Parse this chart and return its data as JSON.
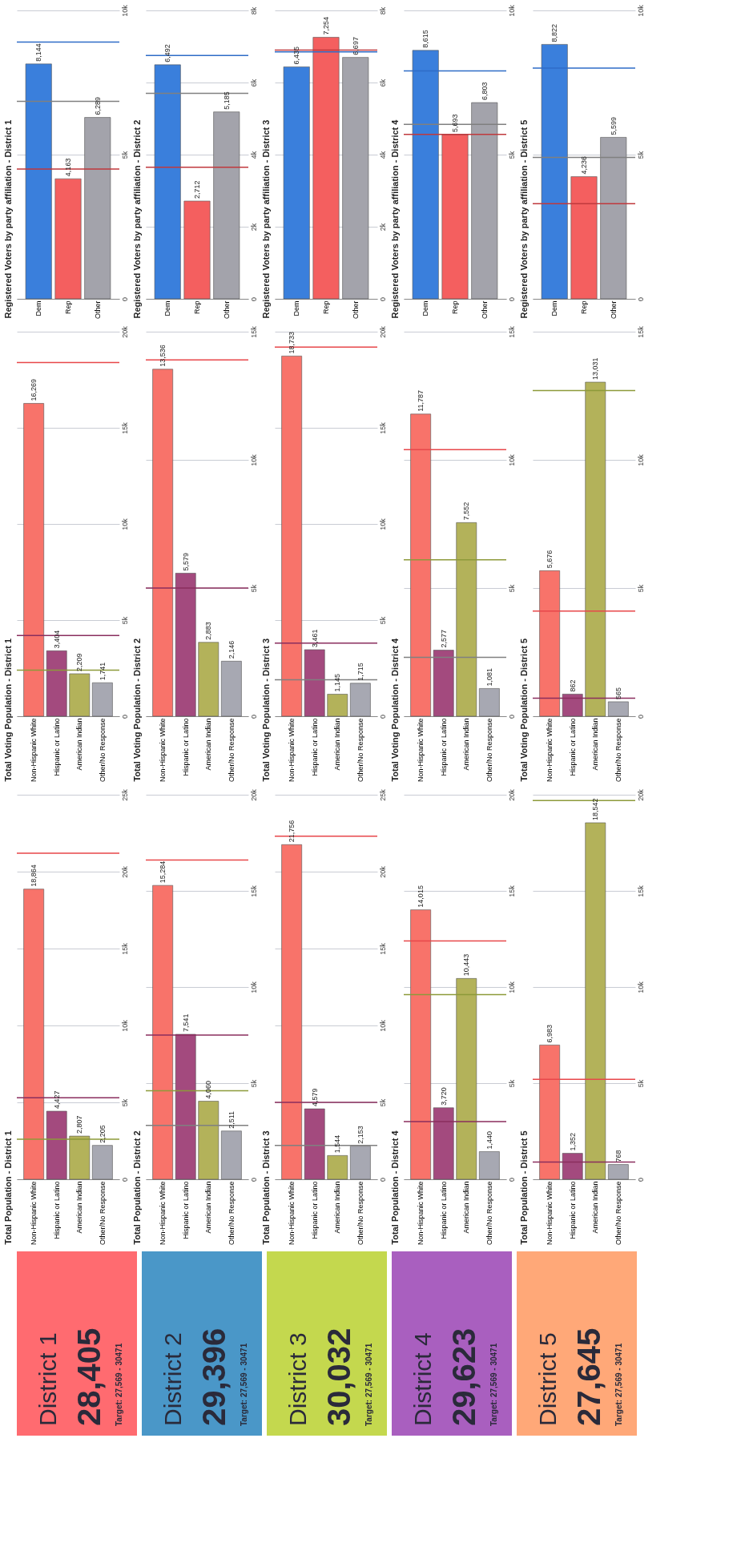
{
  "chart_data": [
    {
      "type": "bar",
      "title": "Registered Voters by party affiliation - District 1",
      "categories": [
        "Dem",
        "Rep",
        "Other"
      ],
      "values": [
        8144,
        4163,
        6289
      ],
      "value_labels": [
        "8,144",
        "4,163",
        "6,289"
      ],
      "colors": [
        "#3a7fdc",
        "#f45f5f",
        "#a3a3ab"
      ],
      "ylim": [
        0,
        10000
      ],
      "yticks": [
        0,
        {
          "value": 5000,
          "label": "5k"
        },
        {
          "value": 10000,
          "label": "10k"
        }
      ],
      "grid": "y",
      "ref_lines": [
        {
          "axis": "y",
          "value": 8900,
          "color": "#2f6cc7"
        },
        {
          "axis": "y",
          "value": 4500,
          "color": "#c0393d"
        },
        {
          "axis": "y",
          "value": 6850,
          "color": "#808080"
        }
      ]
    },
    {
      "type": "bar",
      "title": "Registered Voters by party affiliation - District 2",
      "categories": [
        "Dem",
        "Rep",
        "Other"
      ],
      "values": [
        6492,
        2712,
        5185
      ],
      "value_labels": [
        "6,492",
        "2,712",
        "5,185"
      ],
      "colors": [
        "#3a7fdc",
        "#f45f5f",
        "#a3a3ab"
      ],
      "ylim": [
        0,
        8000
      ],
      "yticks": [
        0,
        {
          "value": 2000,
          "label": "2k"
        },
        {
          "value": 4000,
          "label": "4k"
        },
        {
          "value": 6000,
          "label": "6k"
        },
        {
          "value": 8000,
          "label": "8k"
        }
      ],
      "grid": "y",
      "ref_lines": [
        {
          "axis": "y",
          "value": 6750,
          "color": "#2f6cc7"
        },
        {
          "axis": "y",
          "value": 3650,
          "color": "#c0393d"
        },
        {
          "axis": "y",
          "value": 5700,
          "color": "#808080"
        }
      ]
    },
    {
      "type": "bar",
      "title": "Registered Voters by party affiliation - District 3",
      "categories": [
        "Dem",
        "Rep",
        "Other"
      ],
      "values": [
        6435,
        7254,
        6697
      ],
      "value_labels": [
        "6,435",
        "7,254",
        "6,697"
      ],
      "colors": [
        "#3a7fdc",
        "#f45f5f",
        "#a3a3ab"
      ],
      "ylim": [
        0,
        8000
      ],
      "yticks": [
        0,
        {
          "value": 2000,
          "label": "2k"
        },
        {
          "value": 4000,
          "label": "4k"
        },
        {
          "value": 6000,
          "label": "6k"
        },
        {
          "value": 8000,
          "label": "8k"
        }
      ],
      "grid": "y",
      "ref_lines": [
        {
          "axis": "y",
          "value": 6850,
          "color": "#2f6cc7"
        },
        {
          "axis": "y",
          "value": 6900,
          "color": "#c0393d"
        }
      ]
    },
    {
      "type": "bar",
      "title": "Registered Voters by party affiliation - District 4",
      "categories": [
        "Dem",
        "Rep",
        "Other"
      ],
      "values": [
        8615,
        5693,
        6803
      ],
      "value_labels": [
        "8,615",
        "5,693",
        "6,803"
      ],
      "colors": [
        "#3a7fdc",
        "#f45f5f",
        "#a3a3ab"
      ],
      "ylim": [
        0,
        10000
      ],
      "yticks": [
        0,
        {
          "value": 5000,
          "label": "5k"
        },
        {
          "value": 10000,
          "label": "10k"
        }
      ],
      "grid": "y",
      "ref_lines": [
        {
          "axis": "y",
          "value": 7900,
          "color": "#2f6cc7"
        },
        {
          "axis": "y",
          "value": 5700,
          "color": "#c0393d"
        },
        {
          "axis": "y",
          "value": 6050,
          "color": "#808080"
        }
      ]
    },
    {
      "type": "bar",
      "title": "Registered Voters by party affiliation - District 5",
      "categories": [
        "Dem",
        "Rep",
        "Other"
      ],
      "values": [
        8822,
        4236,
        5599
      ],
      "value_labels": [
        "8,822",
        "4,236",
        "5,599"
      ],
      "colors": [
        "#3a7fdc",
        "#f45f5f",
        "#a3a3ab"
      ],
      "ylim": [
        0,
        10000
      ],
      "yticks": [
        0,
        {
          "value": 5000,
          "label": "5k"
        },
        {
          "value": 10000,
          "label": "10k"
        }
      ],
      "grid": "y",
      "ref_lines": [
        {
          "axis": "y",
          "value": 8000,
          "color": "#2f6cc7"
        },
        {
          "axis": "y",
          "value": 3300,
          "color": "#c0393d"
        },
        {
          "axis": "y",
          "value": 4900,
          "color": "#808080"
        }
      ]
    },
    {
      "type": "bar",
      "title": "Total Voting Population - District 1",
      "categories": [
        "Non-Hispanic White",
        "Hispanic or Latino",
        "American Indian",
        "Other/No Response"
      ],
      "values": [
        16269,
        3404,
        2209,
        1741
      ],
      "value_labels": [
        "16,269",
        "3,404",
        "2,209",
        "1,741"
      ],
      "colors": [
        "#f8736a",
        "#a34a7e",
        "#b3b25a",
        "#a7a8b2"
      ],
      "ylim": [
        0,
        20000
      ],
      "yticks": [
        0,
        {
          "value": 5000,
          "label": "5k"
        },
        {
          "value": 10000,
          "label": "10k"
        },
        {
          "value": 15000,
          "label": "15k"
        },
        {
          "value": 20000,
          "label": "20k"
        }
      ],
      "grid": "y",
      "ref_lines": [
        {
          "axis": "y",
          "value": 18400,
          "color": "#e8474a"
        },
        {
          "axis": "y",
          "value": 4200,
          "color": "#8a2e5e"
        },
        {
          "axis": "y",
          "value": 2400,
          "color": "#8d9a3a"
        }
      ]
    },
    {
      "type": "bar",
      "title": "Total Voting Population - District 2",
      "categories": [
        "Non-Hispanic White",
        "Hispanic or Latino",
        "American Indian",
        "Other/No Response"
      ],
      "values": [
        13536,
        5579,
        2883,
        2146
      ],
      "value_labels": [
        "13,536",
        "5,579",
        "2,883",
        "2,146"
      ],
      "colors": [
        "#f8736a",
        "#a34a7e",
        "#b3b25a",
        "#a7a8b2"
      ],
      "ylim": [
        0,
        15000
      ],
      "yticks": [
        0,
        {
          "value": 5000,
          "label": "5k"
        },
        {
          "value": 10000,
          "label": "10k"
        },
        {
          "value": 15000,
          "label": "15k"
        }
      ],
      "grid": "y",
      "ref_lines": [
        {
          "axis": "y",
          "value": 13900,
          "color": "#e8474a"
        },
        {
          "axis": "y",
          "value": 5000,
          "color": "#8a2e5e"
        }
      ]
    },
    {
      "type": "bar",
      "title": "Total Voting Population - District 3",
      "categories": [
        "Non-Hispanic White",
        "Hispanic or Latino",
        "American Indian",
        "Other/No Response"
      ],
      "values": [
        18733,
        3461,
        1145,
        1715
      ],
      "value_labels": [
        "18,733",
        "3,461",
        "1,145",
        "1,715"
      ],
      "colors": [
        "#f8736a",
        "#a34a7e",
        "#b3b25a",
        "#a7a8b2"
      ],
      "ylim": [
        0,
        20000
      ],
      "yticks": [
        0,
        {
          "value": 5000,
          "label": "5k"
        },
        {
          "value": 10000,
          "label": "10k"
        },
        {
          "value": 15000,
          "label": "15k"
        },
        {
          "value": 20000,
          "label": "20k"
        }
      ],
      "grid": "y",
      "ref_lines": [
        {
          "axis": "y",
          "value": 19200,
          "color": "#e8474a"
        },
        {
          "axis": "y",
          "value": 3800,
          "color": "#8a2e5e"
        },
        {
          "axis": "y",
          "value": 1900,
          "color": "#808080"
        }
      ]
    },
    {
      "type": "bar",
      "title": "Total Voting Population - District 4",
      "categories": [
        "Non-Hispanic White",
        "Hispanic or Latino",
        "American Indian",
        "Other/No Response"
      ],
      "values": [
        11787,
        2577,
        7552,
        1081
      ],
      "value_labels": [
        "11,787",
        "2,577",
        "7,552",
        "1,081"
      ],
      "colors": [
        "#f8736a",
        "#a34a7e",
        "#b3b25a",
        "#a7a8b2"
      ],
      "ylim": [
        0,
        15000
      ],
      "yticks": [
        0,
        {
          "value": 5000,
          "label": "5k"
        },
        {
          "value": 10000,
          "label": "10k"
        },
        {
          "value": 15000,
          "label": "15k"
        }
      ],
      "grid": "y",
      "ref_lines": [
        {
          "axis": "y",
          "value": 10400,
          "color": "#e8474a"
        },
        {
          "axis": "y",
          "value": 6100,
          "color": "#8d9a3a"
        },
        {
          "axis": "y",
          "value": 2300,
          "color": "#808080"
        }
      ]
    },
    {
      "type": "bar",
      "title": "Total Voting Population - District 5",
      "categories": [
        "Non-Hispanic White",
        "Hispanic or Latino",
        "American Indian",
        "Other/No Response"
      ],
      "values": [
        5676,
        862,
        13031,
        565
      ],
      "value_labels": [
        "5,676",
        "862",
        "13,031",
        "565"
      ],
      "colors": [
        "#f8736a",
        "#a34a7e",
        "#b3b25a",
        "#a7a8b2"
      ],
      "ylim": [
        0,
        15000
      ],
      "yticks": [
        0,
        {
          "value": 5000,
          "label": "5k"
        },
        {
          "value": 10000,
          "label": "10k"
        },
        {
          "value": 15000,
          "label": "15k"
        }
      ],
      "grid": "y",
      "ref_lines": [
        {
          "axis": "y",
          "value": 4100,
          "color": "#e8474a"
        },
        {
          "axis": "y",
          "value": 12700,
          "color": "#8d9a3a"
        },
        {
          "axis": "y",
          "value": 700,
          "color": "#8a2e5e"
        }
      ]
    },
    {
      "type": "bar",
      "title": "Total Population - District 1",
      "categories": [
        "Non-Hispanic White",
        "Hispanic or Latino",
        "American Indian",
        "Other/No Response"
      ],
      "values": [
        18864,
        4427,
        2807,
        2205
      ],
      "value_labels": [
        "18,864",
        "4,427",
        "2,807",
        "2,205"
      ],
      "colors": [
        "#f8736a",
        "#a34a7e",
        "#b3b25a",
        "#a7a8b2"
      ],
      "ylim": [
        0,
        25000
      ],
      "yticks": [
        0,
        {
          "value": 5000,
          "label": "5k"
        },
        {
          "value": 10000,
          "label": "10k"
        },
        {
          "value": 15000,
          "label": "15k"
        },
        {
          "value": 20000,
          "label": "20k"
        },
        {
          "value": 25000,
          "label": "25k"
        }
      ],
      "grid": "y",
      "ref_lines": [
        {
          "axis": "y",
          "value": 21200,
          "color": "#e8474a"
        },
        {
          "axis": "y",
          "value": 5300,
          "color": "#8a2e5e"
        },
        {
          "axis": "y",
          "value": 2600,
          "color": "#8d9a3a"
        }
      ]
    },
    {
      "type": "bar",
      "title": "Total Population - District 2",
      "categories": [
        "Non-Hispanic White",
        "Hispanic or Latino",
        "American Indian",
        "Other/No Response"
      ],
      "values": [
        15284,
        7541,
        4060,
        2511
      ],
      "value_labels": [
        "15,284",
        "7,541",
        "4,060",
        "2,511"
      ],
      "colors": [
        "#f8736a",
        "#a34a7e",
        "#b3b25a",
        "#a7a8b2"
      ],
      "ylim": [
        0,
        20000
      ],
      "yticks": [
        0,
        {
          "value": 5000,
          "label": "5k"
        },
        {
          "value": 10000,
          "label": "10k"
        },
        {
          "value": 15000,
          "label": "15k"
        },
        {
          "value": 20000,
          "label": "20k"
        }
      ],
      "grid": "y",
      "ref_lines": [
        {
          "axis": "y",
          "value": 16600,
          "color": "#e8474a"
        },
        {
          "axis": "y",
          "value": 7500,
          "color": "#8a2e5e"
        },
        {
          "axis": "y",
          "value": 4600,
          "color": "#8d9a3a"
        },
        {
          "axis": "y",
          "value": 2800,
          "color": "#808080"
        }
      ]
    },
    {
      "type": "bar",
      "title": "Total Population - District 3",
      "categories": [
        "Non-Hispanic White",
        "Hispanic or Latino",
        "American Indian",
        "Other/No Response"
      ],
      "values": [
        21756,
        4579,
        1544,
        2153
      ],
      "value_labels": [
        "21,756",
        "4,579",
        "1,544",
        "2,153"
      ],
      "colors": [
        "#f8736a",
        "#a34a7e",
        "#b3b25a",
        "#a7a8b2"
      ],
      "ylim": [
        0,
        25000
      ],
      "yticks": [
        0,
        {
          "value": 5000,
          "label": "5k"
        },
        {
          "value": 10000,
          "label": "10k"
        },
        {
          "value": 15000,
          "label": "15k"
        },
        {
          "value": 20000,
          "label": "20k"
        },
        {
          "value": 25000,
          "label": "25k"
        }
      ],
      "grid": "y",
      "ref_lines": [
        {
          "axis": "y",
          "value": 22300,
          "color": "#e8474a"
        },
        {
          "axis": "y",
          "value": 5000,
          "color": "#8a2e5e"
        },
        {
          "axis": "y",
          "value": 2200,
          "color": "#808080"
        }
      ]
    },
    {
      "type": "bar",
      "title": "Total Population - District 4",
      "categories": [
        "Non-Hispanic White",
        "Hispanic or Latino",
        "American Indian",
        "Other/No Response"
      ],
      "values": [
        14015,
        3720,
        10443,
        1440
      ],
      "value_labels": [
        "14,015",
        "3,720",
        "10,443",
        "1,440"
      ],
      "colors": [
        "#f8736a",
        "#a34a7e",
        "#b3b25a",
        "#a7a8b2"
      ],
      "ylim": [
        0,
        20000
      ],
      "yticks": [
        0,
        {
          "value": 5000,
          "label": "5k"
        },
        {
          "value": 10000,
          "label": "10k"
        },
        {
          "value": 15000,
          "label": "15k"
        },
        {
          "value": 20000,
          "label": "20k"
        }
      ],
      "grid": "y",
      "ref_lines": [
        {
          "axis": "y",
          "value": 12400,
          "color": "#e8474a"
        },
        {
          "axis": "y",
          "value": 9600,
          "color": "#8d9a3a"
        },
        {
          "axis": "y",
          "value": 3000,
          "color": "#8a2e5e"
        }
      ]
    },
    {
      "type": "bar",
      "title": "Total Population - District 5",
      "categories": [
        "Non-Hispanic White",
        "Hispanic or Latino",
        "American Indian",
        "Other/No Response"
      ],
      "values": [
        6983,
        1352,
        18542,
        768
      ],
      "value_labels": [
        "6,983",
        "1,352",
        "18,542",
        "768"
      ],
      "colors": [
        "#f8736a",
        "#a34a7e",
        "#b3b25a",
        "#a7a8b2"
      ],
      "ylim": [
        0,
        20000
      ],
      "yticks": [
        0,
        {
          "value": 5000,
          "label": "5k"
        },
        {
          "value": 10000,
          "label": "10k"
        },
        {
          "value": 15000,
          "label": "15k"
        },
        {
          "value": 20000,
          "label": "20k"
        }
      ],
      "grid": "y",
      "ref_lines": [
        {
          "axis": "y",
          "value": 5200,
          "color": "#e8474a"
        },
        {
          "axis": "y",
          "value": 19700,
          "color": "#8d9a3a"
        },
        {
          "axis": "y",
          "value": 900,
          "color": "#8a2e5e"
        }
      ]
    },
    {
      "type": "other",
      "title": "District 1",
      "annotations": [
        "28,405",
        "Target: 27,569 - 30471"
      ],
      "color": "#ff6b70"
    },
    {
      "type": "other",
      "title": "District 2",
      "annotations": [
        "29,396",
        "Target: 27,569 - 30471"
      ],
      "color": "#4a97c8"
    },
    {
      "type": "other",
      "title": "District 3",
      "annotations": [
        "30,032",
        "Target: 27,569 - 30471"
      ],
      "color": "#c4d84e"
    },
    {
      "type": "other",
      "title": "District 4",
      "annotations": [
        "29,623",
        "Target: 27,569 - 30471"
      ],
      "color": "#a95fbf"
    },
    {
      "type": "other",
      "title": "District 5",
      "annotations": [
        "27,645",
        "Target: 27,569 - 30471"
      ],
      "color": "#ffa878"
    }
  ]
}
